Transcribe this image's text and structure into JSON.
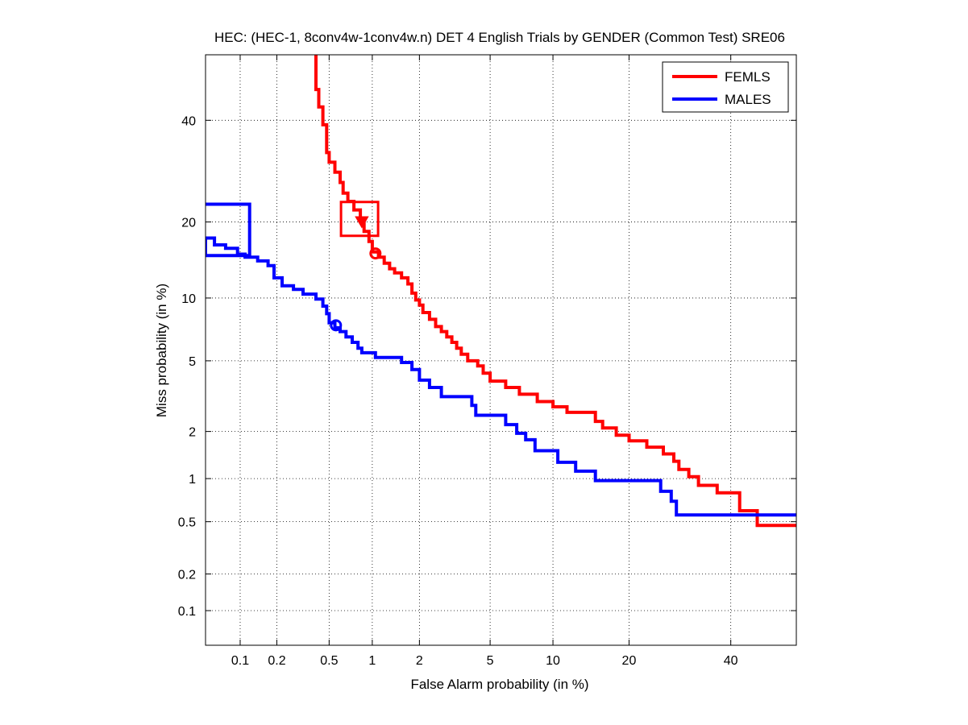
{
  "chart_data": {
    "type": "line",
    "subtype": "DET curve",
    "title": "HEC: (HEC-1, 8conv4w-1conv4w.n) DET 4 English Trials by GENDER (Common Test) SRE06",
    "xlabel": "False Alarm probability (in %)",
    "ylabel": "Miss probability (in %)",
    "x_ticks": [
      0.1,
      0.2,
      0.5,
      1,
      2,
      5,
      10,
      20,
      40
    ],
    "x_tick_labels": [
      "0.1",
      "0.2",
      "0.5",
      "1",
      "2",
      "5",
      "10",
      "20",
      "40"
    ],
    "y_ticks": [
      0.1,
      0.2,
      0.5,
      1,
      2,
      5,
      10,
      20,
      40
    ],
    "y_tick_labels": [
      "0.1",
      "0.2",
      "0.5",
      "1",
      "2",
      "5",
      "10",
      "20",
      "40"
    ],
    "xlim": [
      0.05,
      55
    ],
    "ylim": [
      0.05,
      55
    ],
    "grid": true,
    "legend_position": "top-right",
    "series": [
      {
        "name": "FEMLS",
        "color": "#ff0000",
        "points": [
          [
            0.4,
            55
          ],
          [
            0.4,
            47
          ],
          [
            0.42,
            47
          ],
          [
            0.42,
            43
          ],
          [
            0.45,
            43
          ],
          [
            0.45,
            39
          ],
          [
            0.48,
            39
          ],
          [
            0.48,
            33
          ],
          [
            0.5,
            33
          ],
          [
            0.5,
            31
          ],
          [
            0.55,
            31
          ],
          [
            0.55,
            29
          ],
          [
            0.6,
            29
          ],
          [
            0.6,
            27
          ],
          [
            0.63,
            27
          ],
          [
            0.63,
            25
          ],
          [
            0.68,
            25
          ],
          [
            0.68,
            23.5
          ],
          [
            0.75,
            23.5
          ],
          [
            0.75,
            22
          ],
          [
            0.83,
            22
          ],
          [
            0.83,
            20.5
          ],
          [
            0.88,
            20.5
          ],
          [
            0.88,
            18.5
          ],
          [
            0.95,
            18.5
          ],
          [
            0.95,
            17
          ],
          [
            1.0,
            17
          ],
          [
            1.0,
            15.5
          ],
          [
            1.1,
            15.5
          ],
          [
            1.1,
            14.8
          ],
          [
            1.2,
            14.8
          ],
          [
            1.2,
            14
          ],
          [
            1.3,
            14
          ],
          [
            1.3,
            13.3
          ],
          [
            1.4,
            13.3
          ],
          [
            1.4,
            12.8
          ],
          [
            1.55,
            12.8
          ],
          [
            1.55,
            12.2
          ],
          [
            1.7,
            12.2
          ],
          [
            1.7,
            11.5
          ],
          [
            1.8,
            11.5
          ],
          [
            1.8,
            10.5
          ],
          [
            1.9,
            10.5
          ],
          [
            1.9,
            9.8
          ],
          [
            2.0,
            9.8
          ],
          [
            2.0,
            9.3
          ],
          [
            2.1,
            9.3
          ],
          [
            2.1,
            8.6
          ],
          [
            2.3,
            8.6
          ],
          [
            2.3,
            8
          ],
          [
            2.5,
            8
          ],
          [
            2.5,
            7.4
          ],
          [
            2.7,
            7.4
          ],
          [
            2.7,
            7
          ],
          [
            2.9,
            7
          ],
          [
            2.9,
            6.6
          ],
          [
            3.1,
            6.6
          ],
          [
            3.1,
            6.2
          ],
          [
            3.3,
            6.2
          ],
          [
            3.3,
            5.8
          ],
          [
            3.5,
            5.8
          ],
          [
            3.5,
            5.4
          ],
          [
            3.8,
            5.4
          ],
          [
            3.8,
            5
          ],
          [
            4.3,
            5
          ],
          [
            4.3,
            4.7
          ],
          [
            4.6,
            4.7
          ],
          [
            4.6,
            4.3
          ],
          [
            5.0,
            4.3
          ],
          [
            5.0,
            3.9
          ],
          [
            6.0,
            3.9
          ],
          [
            6.0,
            3.6
          ],
          [
            7.0,
            3.6
          ],
          [
            7.0,
            3.3
          ],
          [
            8.5,
            3.3
          ],
          [
            8.5,
            3.0
          ],
          [
            10.0,
            3.0
          ],
          [
            10.0,
            2.8
          ],
          [
            11.5,
            2.8
          ],
          [
            11.5,
            2.6
          ],
          [
            15.0,
            2.6
          ],
          [
            15.0,
            2.3
          ],
          [
            16.0,
            2.3
          ],
          [
            16.0,
            2.1
          ],
          [
            18.0,
            2.1
          ],
          [
            18.0,
            1.9
          ],
          [
            20.0,
            1.9
          ],
          [
            20.0,
            1.75
          ],
          [
            23.0,
            1.75
          ],
          [
            23.0,
            1.6
          ],
          [
            26.0,
            1.6
          ],
          [
            26.0,
            1.45
          ],
          [
            28.0,
            1.45
          ],
          [
            28.0,
            1.3
          ],
          [
            29.0,
            1.3
          ],
          [
            29.0,
            1.15
          ],
          [
            31.0,
            1.15
          ],
          [
            31.0,
            1.03
          ],
          [
            33.0,
            1.03
          ],
          [
            33.0,
            0.9
          ],
          [
            37.0,
            0.9
          ],
          [
            37.0,
            0.8
          ],
          [
            42.0,
            0.8
          ],
          [
            42.0,
            0.6
          ],
          [
            46.0,
            0.6
          ],
          [
            46.0,
            0.47
          ],
          [
            55,
            0.47
          ]
        ]
      },
      {
        "name": "MALES",
        "color": "#0000ff",
        "points": [
          [
            0.05,
            23
          ],
          [
            0.12,
            23
          ],
          [
            0.12,
            15
          ],
          [
            0.05,
            15
          ],
          [
            0.05,
            17.5
          ],
          [
            0.06,
            17.5
          ],
          [
            0.06,
            16.5
          ],
          [
            0.075,
            16.5
          ],
          [
            0.075,
            16
          ],
          [
            0.095,
            16
          ],
          [
            0.095,
            15.2
          ],
          [
            0.11,
            15.2
          ],
          [
            0.11,
            14.8
          ],
          [
            0.14,
            14.8
          ],
          [
            0.14,
            14.3
          ],
          [
            0.17,
            14.3
          ],
          [
            0.17,
            13.7
          ],
          [
            0.19,
            13.7
          ],
          [
            0.19,
            12.2
          ],
          [
            0.22,
            12.2
          ],
          [
            0.22,
            11.3
          ],
          [
            0.27,
            11.3
          ],
          [
            0.27,
            10.9
          ],
          [
            0.32,
            10.9
          ],
          [
            0.32,
            10.4
          ],
          [
            0.4,
            10.4
          ],
          [
            0.4,
            9.9
          ],
          [
            0.45,
            9.9
          ],
          [
            0.45,
            9.2
          ],
          [
            0.48,
            9.2
          ],
          [
            0.48,
            8.5
          ],
          [
            0.5,
            8.5
          ],
          [
            0.5,
            7.7
          ],
          [
            0.55,
            7.7
          ],
          [
            0.55,
            7.3
          ],
          [
            0.6,
            7.3
          ],
          [
            0.6,
            7.0
          ],
          [
            0.66,
            7.0
          ],
          [
            0.66,
            6.6
          ],
          [
            0.73,
            6.6
          ],
          [
            0.73,
            6.2
          ],
          [
            0.8,
            6.2
          ],
          [
            0.8,
            5.8
          ],
          [
            0.85,
            5.8
          ],
          [
            0.85,
            5.5
          ],
          [
            1.05,
            5.5
          ],
          [
            1.05,
            5.2
          ],
          [
            1.55,
            5.2
          ],
          [
            1.55,
            4.9
          ],
          [
            1.8,
            4.9
          ],
          [
            1.8,
            4.5
          ],
          [
            2.0,
            4.5
          ],
          [
            2.0,
            3.95
          ],
          [
            2.3,
            3.95
          ],
          [
            2.3,
            3.6
          ],
          [
            2.7,
            3.6
          ],
          [
            2.7,
            3.2
          ],
          [
            4.0,
            3.2
          ],
          [
            4.0,
            2.85
          ],
          [
            4.2,
            2.85
          ],
          [
            4.2,
            2.5
          ],
          [
            6.0,
            2.5
          ],
          [
            6.0,
            2.2
          ],
          [
            6.8,
            2.2
          ],
          [
            6.8,
            1.95
          ],
          [
            7.5,
            1.95
          ],
          [
            7.5,
            1.78
          ],
          [
            8.3,
            1.78
          ],
          [
            8.3,
            1.52
          ],
          [
            10.5,
            1.52
          ],
          [
            10.5,
            1.28
          ],
          [
            12.5,
            1.28
          ],
          [
            12.5,
            1.12
          ],
          [
            15.0,
            1.12
          ],
          [
            15.0,
            0.97
          ],
          [
            25.5,
            0.97
          ],
          [
            25.5,
            0.82
          ],
          [
            27.5,
            0.82
          ],
          [
            27.5,
            0.7
          ],
          [
            28.5,
            0.7
          ],
          [
            28.5,
            0.56
          ],
          [
            55,
            0.56
          ]
        ]
      }
    ],
    "markers": [
      {
        "series": "FEMLS",
        "type": "square-box",
        "x": 0.82,
        "y": 20.5
      },
      {
        "series": "FEMLS",
        "type": "triangle-down",
        "x": 0.85,
        "y": 20.0
      },
      {
        "series": "FEMLS",
        "type": "circle",
        "x": 1.05,
        "y": 15.3
      },
      {
        "series": "MALES",
        "type": "circle",
        "x": 0.56,
        "y": 7.5
      }
    ]
  }
}
